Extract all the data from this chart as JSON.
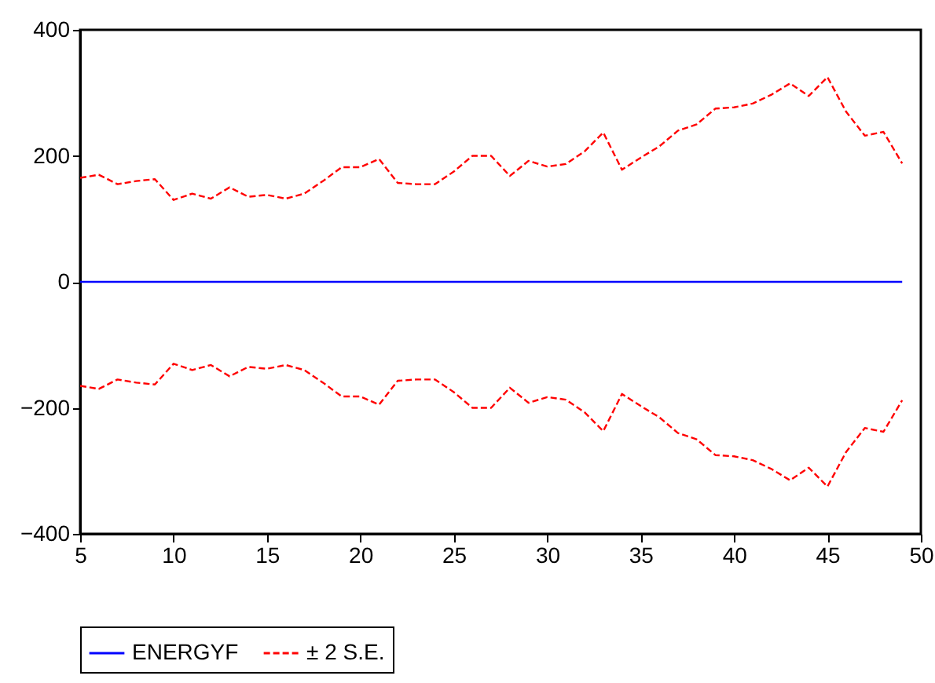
{
  "chart_data": {
    "type": "line",
    "x": [
      5,
      6,
      7,
      8,
      9,
      10,
      11,
      12,
      13,
      14,
      15,
      16,
      17,
      18,
      19,
      20,
      21,
      22,
      23,
      24,
      25,
      26,
      27,
      28,
      29,
      30,
      31,
      32,
      33,
      34,
      35,
      36,
      37,
      38,
      39,
      40,
      41,
      42,
      43,
      44,
      45,
      46,
      47,
      48,
      49
    ],
    "series": [
      {
        "name": "ENERGYF",
        "color": "#0000ff",
        "line_style": "solid",
        "values": [
          0,
          0,
          0,
          0,
          0,
          0,
          0,
          0,
          0,
          0,
          0,
          0,
          0,
          0,
          0,
          0,
          0,
          0,
          0,
          0,
          0,
          0,
          0,
          0,
          0,
          0,
          0,
          0,
          0,
          0,
          0,
          0,
          0,
          0,
          0,
          0,
          0,
          0,
          0,
          0,
          0,
          0,
          0,
          0,
          0
        ]
      },
      {
        "name": "± 2 S.E.",
        "color": "#ff0000",
        "line_style": "dashed",
        "values": [
          165,
          170,
          155,
          160,
          163,
          130,
          140,
          132,
          150,
          135,
          138,
          132,
          140,
          160,
          182,
          182,
          195,
          157,
          155,
          155,
          175,
          200,
          200,
          168,
          192,
          183,
          187,
          207,
          237,
          178,
          197,
          215,
          240,
          250,
          275,
          277,
          283,
          297,
          315,
          295,
          325,
          270,
          232,
          238,
          188
        ]
      },
      {
        "color": "#ff0000",
        "line_style": "dashed",
        "values": [
          -165,
          -170,
          -155,
          -160,
          -163,
          -130,
          -140,
          -132,
          -150,
          -135,
          -138,
          -132,
          -140,
          -160,
          -182,
          -182,
          -195,
          -157,
          -155,
          -155,
          -175,
          -200,
          -200,
          -168,
          -192,
          -183,
          -187,
          -207,
          -237,
          -178,
          -197,
          -215,
          -240,
          -250,
          -275,
          -277,
          -283,
          -297,
          -315,
          -295,
          -325,
          -270,
          -232,
          -238,
          -188
        ]
      }
    ],
    "xlim": [
      5,
      50
    ],
    "xticks": [
      5,
      10,
      15,
      20,
      25,
      30,
      35,
      40,
      45,
      50
    ],
    "ylim": [
      -400,
      400
    ],
    "yticks": [
      -400,
      -200,
      0,
      200,
      400
    ],
    "grid": false,
    "legend": "bottom"
  }
}
